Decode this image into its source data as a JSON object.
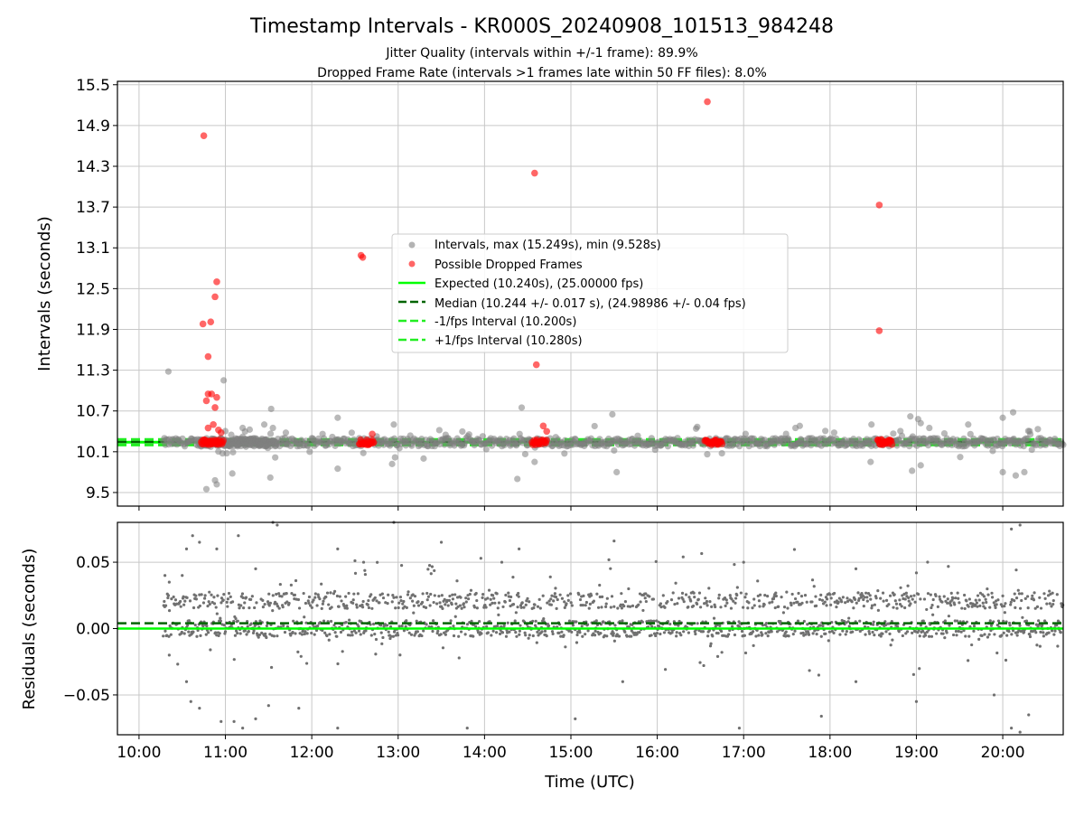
{
  "chart_data": {
    "type": "scatter",
    "title": "Timestamp Intervals - KR000S_20240908_101513_984248",
    "subtitle_lines": [
      "Jitter Quality (intervals within +/-1 frame): 89.9%",
      "Dropped Frame Rate (intervals >1 frames late within 50 FF files): 8.0%"
    ],
    "xlabel": "Time (UTC)",
    "x_ticks": [
      "10:00",
      "11:00",
      "12:00",
      "13:00",
      "14:00",
      "15:00",
      "16:00",
      "17:00",
      "18:00",
      "19:00",
      "20:00"
    ],
    "x_range_hours": [
      9.75,
      20.7
    ],
    "top_panel": {
      "ylabel": "Intervals (seconds)",
      "ylim": [
        9.3,
        15.55
      ],
      "y_ticks": [
        "9.5",
        "10.1",
        "10.7",
        "11.3",
        "11.9",
        "12.5",
        "13.1",
        "13.7",
        "14.3",
        "14.9",
        "15.5"
      ],
      "grid": true,
      "legend_position": "center",
      "legend": [
        {
          "label": "Intervals, max (15.249s), min (9.528s)",
          "marker": "gray-dot",
          "color": "#808080"
        },
        {
          "label": "Possible Dropped Frames",
          "marker": "red-dot",
          "color": "#ff0000"
        },
        {
          "label": "Expected (10.240s), (25.00000 fps)",
          "marker": "solid-line",
          "color": "#00ff00"
        },
        {
          "label": "Median (10.244 +/- 0.017 s), (24.98986 +/- 0.04 fps)",
          "marker": "dashed-line",
          "color": "#006400"
        },
        {
          "label": "-1/fps Interval (10.200s)",
          "marker": "dashed-line",
          "color": "#22ee22"
        },
        {
          "label": "+1/fps Interval (10.280s)",
          "marker": "dashed-line",
          "color": "#22ee22"
        }
      ],
      "expected": 10.24,
      "median": 10.244,
      "minus_interval": 10.2,
      "plus_interval": 10.28,
      "series": [
        {
          "name": "Possible Dropped Frames",
          "color": "#ff0000",
          "points": [
            [
              10.75,
              14.75
            ],
            [
              10.9,
              12.6
            ],
            [
              10.88,
              12.38
            ],
            [
              10.83,
              12.01
            ],
            [
              10.74,
              11.98
            ],
            [
              10.8,
              11.5
            ],
            [
              10.84,
              10.95
            ],
            [
              10.8,
              10.95
            ],
            [
              10.9,
              10.9
            ],
            [
              10.78,
              10.85
            ],
            [
              10.88,
              10.75
            ],
            [
              10.8,
              10.45
            ],
            [
              10.86,
              10.5
            ],
            [
              10.92,
              10.42
            ],
            [
              10.95,
              10.38
            ],
            [
              12.57,
              12.99
            ],
            [
              12.59,
              12.96
            ],
            [
              12.7,
              10.36
            ],
            [
              14.58,
              14.2
            ],
            [
              14.6,
              11.38
            ],
            [
              14.68,
              10.48
            ],
            [
              14.72,
              10.4
            ],
            [
              16.58,
              15.25
            ],
            [
              18.57,
              13.73
            ],
            [
              18.57,
              11.88
            ]
          ],
          "clusters": [
            [
              10.72,
              10.98
            ],
            [
              12.55,
              12.72
            ],
            [
              14.55,
              14.72
            ],
            [
              16.55,
              16.75
            ],
            [
              18.55,
              18.72
            ]
          ]
        },
        {
          "name": "Intervals",
          "color": "#808080",
          "points": [
            [
              10.34,
              11.28
            ],
            [
              10.98,
              11.15
            ],
            [
              11.53,
              10.73
            ],
            [
              11.52,
              9.72
            ],
            [
              10.78,
              9.55
            ],
            [
              10.9,
              9.62
            ],
            [
              10.88,
              9.68
            ],
            [
              11.08,
              9.78
            ],
            [
              12.3,
              9.85
            ],
            [
              12.93,
              9.92
            ],
            [
              14.38,
              9.7
            ],
            [
              14.43,
              10.75
            ],
            [
              14.58,
              9.95
            ],
            [
              15.53,
              9.8
            ],
            [
              15.48,
              10.65
            ],
            [
              18.48,
              10.5
            ],
            [
              18.47,
              9.95
            ],
            [
              18.93,
              10.62
            ],
            [
              19.02,
              10.58
            ],
            [
              19.05,
              10.52
            ],
            [
              19.15,
              10.45
            ],
            [
              18.95,
              9.82
            ],
            [
              19.05,
              9.9
            ],
            [
              19.6,
              10.5
            ],
            [
              20.0,
              10.6
            ],
            [
              20.12,
              10.68
            ],
            [
              20.0,
              9.8
            ],
            [
              20.15,
              9.75
            ],
            [
              20.25,
              9.8
            ],
            [
              12.55,
              10.3
            ],
            [
              13.55,
              10.35
            ],
            [
              16.8,
              10.3
            ],
            [
              17.6,
              10.45
            ],
            [
              17.65,
              10.48
            ],
            [
              12.95,
              10.5
            ],
            [
              12.3,
              10.6
            ],
            [
              11.45,
              10.5
            ],
            [
              11.55,
              10.45
            ],
            [
              11.7,
              10.38
            ],
            [
              11.2,
              10.45
            ]
          ]
        }
      ]
    },
    "bottom_panel": {
      "ylabel": "Residuals (seconds)",
      "ylim": [
        -0.08,
        0.08
      ],
      "y_ticks": [
        "0.05",
        "0.00",
        "−0.05"
      ],
      "y_tick_values": [
        0.05,
        0.0,
        -0.05
      ],
      "grid": true,
      "expected_residual": 0.0,
      "median_residual": 0.004,
      "residual_bands": [
        0.0,
        0.021
      ],
      "outliers": [
        [
          10.3,
          0.04
        ],
        [
          10.35,
          0.035
        ],
        [
          10.5,
          0.04
        ],
        [
          10.55,
          0.06
        ],
        [
          10.62,
          0.07
        ],
        [
          10.7,
          0.065
        ],
        [
          10.9,
          0.06
        ],
        [
          11.15,
          0.07
        ],
        [
          11.35,
          0.045
        ],
        [
          11.55,
          0.08
        ],
        [
          11.6,
          0.078
        ],
        [
          12.3,
          0.06
        ],
        [
          12.6,
          0.05
        ],
        [
          12.95,
          0.08
        ],
        [
          13.5,
          0.065
        ],
        [
          14.2,
          0.05
        ],
        [
          14.4,
          0.06
        ],
        [
          15.5,
          0.066
        ],
        [
          16.3,
          0.054
        ],
        [
          17.0,
          0.05
        ],
        [
          18.3,
          0.045
        ],
        [
          19.0,
          0.042
        ],
        [
          20.1,
          0.075
        ],
        [
          20.2,
          0.078
        ],
        [
          10.35,
          -0.02
        ],
        [
          10.55,
          -0.04
        ],
        [
          10.6,
          -0.055
        ],
        [
          10.7,
          -0.06
        ],
        [
          10.95,
          -0.07
        ],
        [
          11.1,
          -0.07
        ],
        [
          11.2,
          -0.075
        ],
        [
          11.35,
          -0.068
        ],
        [
          11.5,
          -0.058
        ],
        [
          11.85,
          -0.06
        ],
        [
          12.3,
          -0.075
        ],
        [
          13.8,
          -0.075
        ],
        [
          15.05,
          -0.068
        ],
        [
          15.6,
          -0.04
        ],
        [
          16.95,
          -0.075
        ],
        [
          17.9,
          -0.066
        ],
        [
          18.3,
          -0.04
        ],
        [
          19.0,
          -0.055
        ],
        [
          20.1,
          -0.075
        ],
        [
          20.2,
          -0.078
        ],
        [
          20.3,
          -0.065
        ],
        [
          19.9,
          -0.05
        ]
      ]
    }
  }
}
